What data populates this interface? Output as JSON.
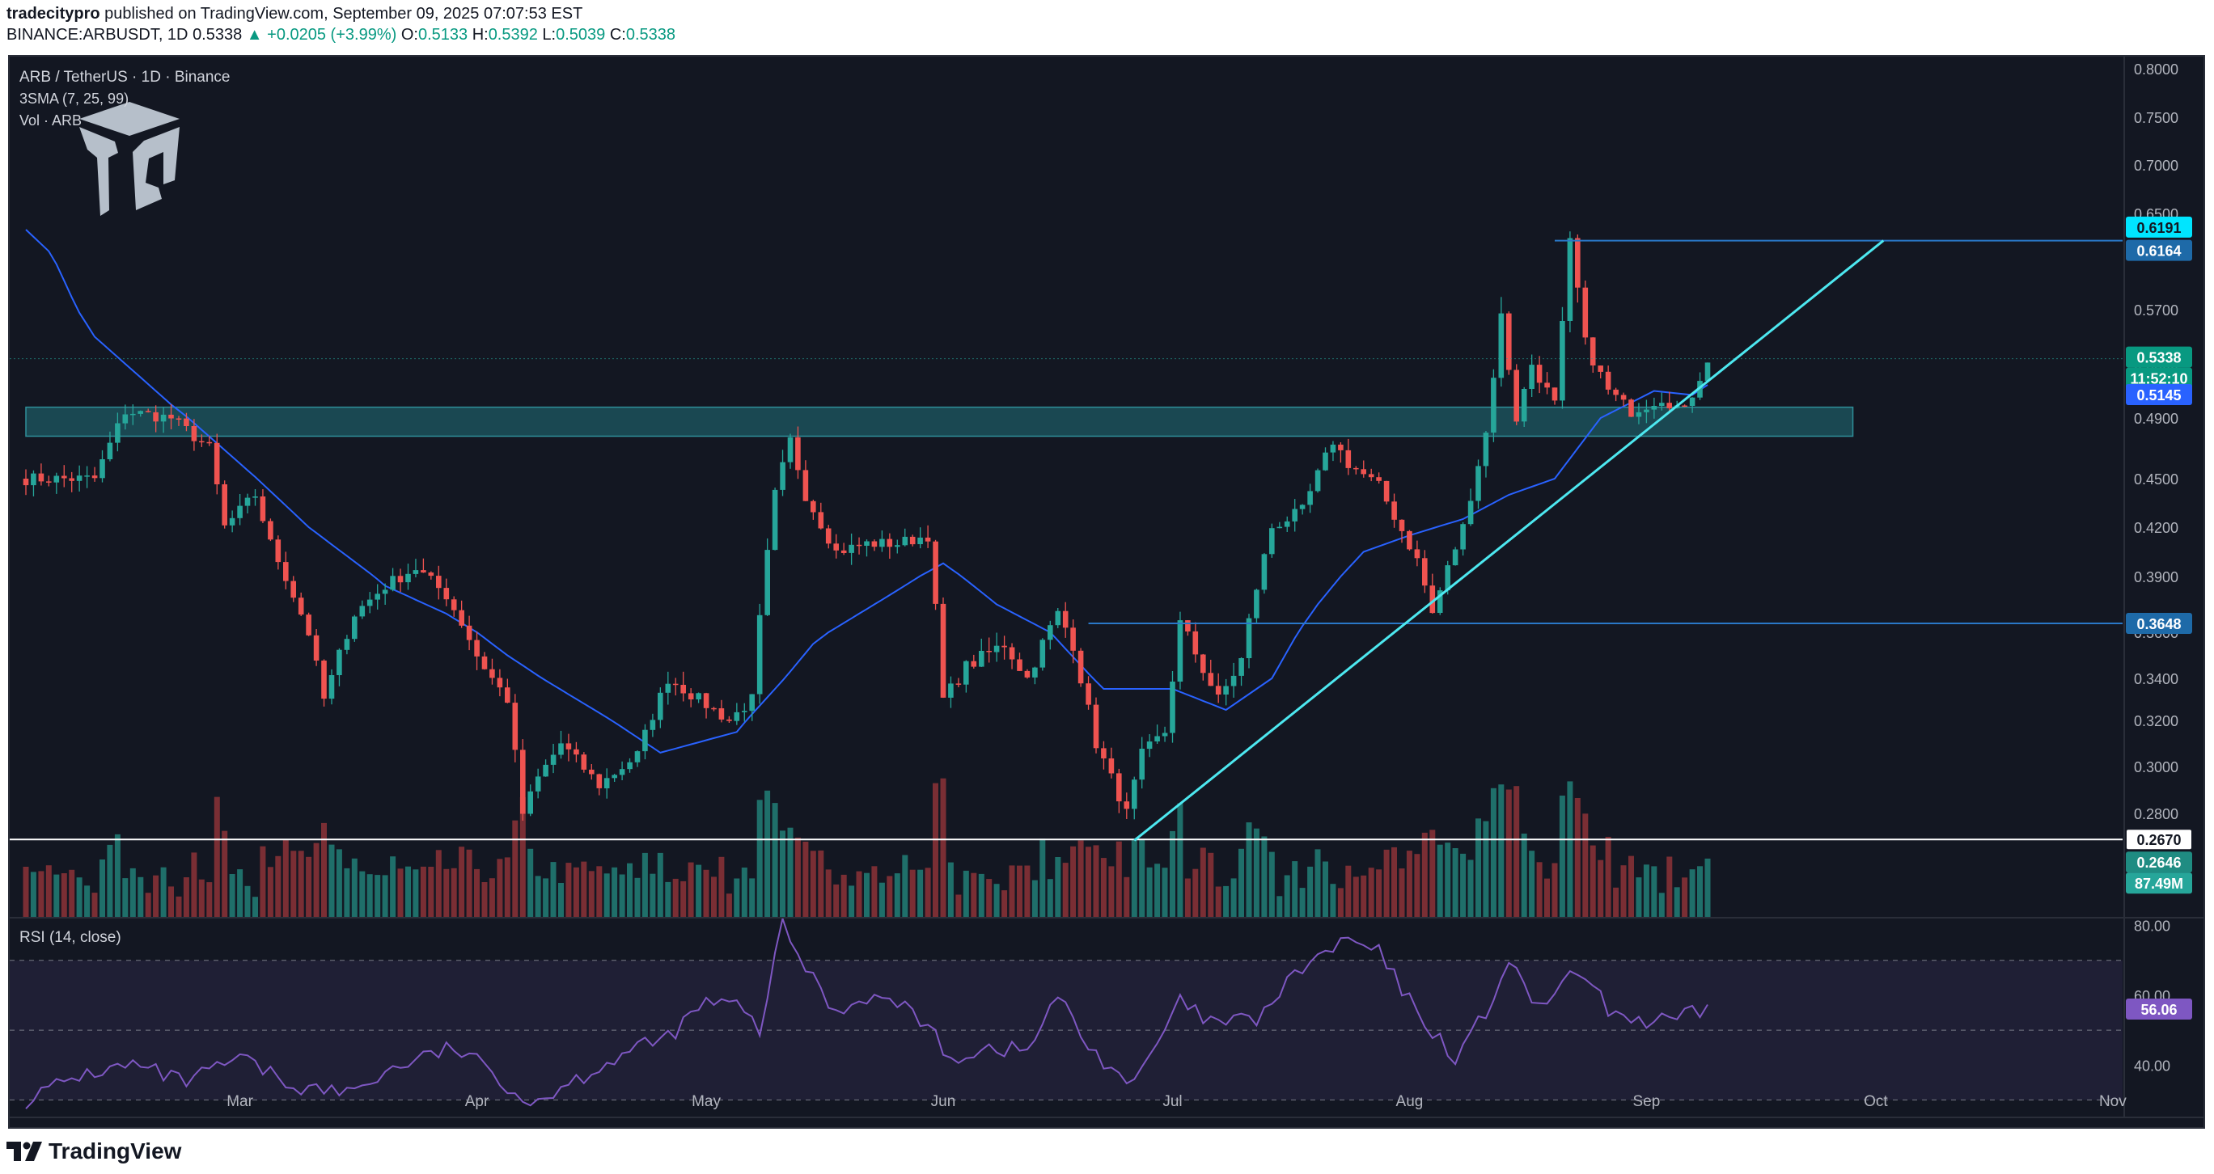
{
  "header": {
    "publisher": "tradecitypro",
    "published_text": "published on TradingView.com, September 09, 2025 07:07:53 EST",
    "symbol": "BINANCE:ARBUSDT, 1D",
    "last": "0.5338",
    "change": "▲ +0.0205 (+3.99%)",
    "o_label": "O:",
    "o": "0.5133",
    "h_label": "H:",
    "h": "0.5392",
    "l_label": "L:",
    "l": "0.5039",
    "c_label": "C:",
    "c": "0.5338"
  },
  "legend": {
    "title": "ARB / TetherUS · 1D · Binance",
    "sma": "3SMA (7, 25, 99)",
    "vol": "Vol · ARB"
  },
  "footer": {
    "brand": "TradingView"
  },
  "colors": {
    "bg": "#131722",
    "up": "#26a69a",
    "down": "#ef5350",
    "vol_up": "#1f6f6a",
    "vol_down": "#7a2e34",
    "sma": "#2962ff",
    "trend": "#4de8f0",
    "level": "#2a78c8",
    "zone": "#1d5a63",
    "rsi": "#7e57c2"
  },
  "chart_data": [
    {
      "type": "candlestick",
      "title": "ARB / TetherUS · 1D · Binance",
      "interval": "1D",
      "x_ticks": [
        "Mar",
        "Apr",
        "May",
        "Jun",
        "Jul",
        "Aug",
        "Sep",
        "Oct",
        "Nov"
      ],
      "y_ticks": [
        "0.8000",
        "0.7500",
        "0.7000",
        "0.6500",
        "0.6000",
        "0.5700",
        "0.5300",
        "0.4900",
        "0.4500",
        "0.4200",
        "0.3900",
        "0.3600",
        "0.3400",
        "0.3200",
        "0.3000",
        "0.2800"
      ],
      "ylim": [
        0.255,
        0.805
      ],
      "close_anchors": [
        [
          "2025-02-10",
          0.45
        ],
        [
          "2025-02-14",
          0.495
        ],
        [
          "2025-02-20",
          0.49
        ],
        [
          "2025-02-25",
          0.47
        ],
        [
          "2025-02-27",
          0.42
        ],
        [
          "2025-03-03",
          0.44
        ],
        [
          "2025-03-05",
          0.41
        ],
        [
          "2025-03-07",
          0.39
        ],
        [
          "2025-03-10",
          0.36
        ],
        [
          "2025-03-12",
          0.33
        ],
        [
          "2025-03-16",
          0.37
        ],
        [
          "2025-03-20",
          0.385
        ],
        [
          "2025-03-24",
          0.395
        ],
        [
          "2025-03-28",
          0.38
        ],
        [
          "2025-04-01",
          0.35
        ],
        [
          "2025-04-05",
          0.33
        ],
        [
          "2025-04-07",
          0.28
        ],
        [
          "2025-04-09",
          0.295
        ],
        [
          "2025-04-12",
          0.31
        ],
        [
          "2025-04-17",
          0.292
        ],
        [
          "2025-04-22",
          0.305
        ],
        [
          "2025-04-26",
          0.34
        ],
        [
          "2025-04-30",
          0.33
        ],
        [
          "2025-05-04",
          0.32
        ],
        [
          "2025-05-07",
          0.33
        ],
        [
          "2025-05-10",
          0.44
        ],
        [
          "2025-05-12",
          0.475
        ],
        [
          "2025-05-14",
          0.44
        ],
        [
          "2025-05-18",
          0.405
        ],
        [
          "2025-05-22",
          0.41
        ],
        [
          "2025-05-26",
          0.41
        ],
        [
          "2025-05-30",
          0.415
        ],
        [
          "2025-06-01",
          0.33
        ],
        [
          "2025-06-04",
          0.345
        ],
        [
          "2025-06-09",
          0.355
        ],
        [
          "2025-06-12",
          0.34
        ],
        [
          "2025-06-16",
          0.37
        ],
        [
          "2025-06-18",
          0.355
        ],
        [
          "2025-06-21",
          0.31
        ],
        [
          "2025-06-25",
          0.28
        ],
        [
          "2025-06-27",
          0.305
        ],
        [
          "2025-06-30",
          0.315
        ],
        [
          "2025-07-02",
          0.365
        ],
        [
          "2025-07-07",
          0.33
        ],
        [
          "2025-07-10",
          0.348
        ],
        [
          "2025-07-14",
          0.42
        ],
        [
          "2025-07-18",
          0.43
        ],
        [
          "2025-07-22",
          0.475
        ],
        [
          "2025-07-24",
          0.46
        ],
        [
          "2025-07-28",
          0.445
        ],
        [
          "2025-08-02",
          0.4
        ],
        [
          "2025-08-04",
          0.37
        ],
        [
          "2025-08-06",
          0.395
        ],
        [
          "2025-08-08",
          0.42
        ],
        [
          "2025-08-11",
          0.48
        ],
        [
          "2025-08-13",
          0.565
        ],
        [
          "2025-08-15",
          0.49
        ],
        [
          "2025-08-17",
          0.53
        ],
        [
          "2025-08-20",
          0.5
        ],
        [
          "2025-08-22",
          0.615
        ],
        [
          "2025-08-24",
          0.545
        ],
        [
          "2025-08-27",
          0.51
        ],
        [
          "2025-08-30",
          0.495
        ],
        [
          "2025-09-03",
          0.505
        ],
        [
          "2025-09-06",
          0.495
        ],
        [
          "2025-09-09",
          0.5338
        ]
      ],
      "sma_anchors": [
        [
          "2025-02-01",
          0.63
        ],
        [
          "2025-02-10",
          0.55
        ],
        [
          "2025-02-20",
          0.5
        ],
        [
          "2025-03-01",
          0.46
        ],
        [
          "2025-03-10",
          0.42
        ],
        [
          "2025-03-20",
          0.385
        ],
        [
          "2025-03-28",
          0.37
        ],
        [
          "2025-04-05",
          0.35
        ],
        [
          "2025-04-15",
          0.328
        ],
        [
          "2025-04-25",
          0.306
        ],
        [
          "2025-05-05",
          0.315
        ],
        [
          "2025-05-15",
          0.355
        ],
        [
          "2025-05-25",
          0.38
        ],
        [
          "2025-06-01",
          0.398
        ],
        [
          "2025-06-08",
          0.375
        ],
        [
          "2025-06-15",
          0.36
        ],
        [
          "2025-06-22",
          0.335
        ],
        [
          "2025-07-01",
          0.335
        ],
        [
          "2025-07-08",
          0.325
        ],
        [
          "2025-07-14",
          0.34
        ],
        [
          "2025-07-20",
          0.375
        ],
        [
          "2025-07-26",
          0.405
        ],
        [
          "2025-08-01",
          0.415
        ],
        [
          "2025-08-08",
          0.425
        ],
        [
          "2025-08-14",
          0.44
        ],
        [
          "2025-08-20",
          0.45
        ],
        [
          "2025-08-26",
          0.49
        ],
        [
          "2025-09-02",
          0.51
        ],
        [
          "2025-09-07",
          0.507
        ],
        [
          "2025-09-09",
          0.5145
        ]
      ],
      "price_labels": {
        "resistance_high": "0.6191",
        "resistance": "0.6164",
        "last": "0.5338",
        "countdown": "11:52:10",
        "sma": "0.5145",
        "support": "0.3648",
        "horizontal_line": "0.2670",
        "volume_sma": "0.2646",
        "volume": "87.49M"
      },
      "annotations": {
        "zone_low": 0.478,
        "zone_high": 0.498,
        "zone_start": "2025-02-01",
        "zone_end": "2025-09-28",
        "resistance_value": 0.6164,
        "resistance_start": "2025-08-20",
        "support_value": 0.3648,
        "support_start": "2025-06-20",
        "horizontal_value": 0.267,
        "trendline_start": [
          "2025-06-26",
          0.2665
        ],
        "trendline_end": [
          "2025-10-02",
          0.6164
        ]
      }
    },
    {
      "type": "line",
      "title": "RSI (14, close)",
      "ylim": [
        25,
        82
      ],
      "y_ticks": [
        "80.00",
        "60.00",
        "40.00"
      ],
      "bands": [
        70,
        50,
        30
      ],
      "last_value": "56.06",
      "anchors": [
        [
          "2025-02-01",
          30
        ],
        [
          "2025-02-08",
          37
        ],
        [
          "2025-02-15",
          40
        ],
        [
          "2025-02-22",
          35
        ],
        [
          "2025-03-01",
          42
        ],
        [
          "2025-03-08",
          34
        ],
        [
          "2025-03-15",
          32
        ],
        [
          "2025-03-22",
          40
        ],
        [
          "2025-03-29",
          45
        ],
        [
          "2025-04-03",
          38
        ],
        [
          "2025-04-08",
          29
        ],
        [
          "2025-04-14",
          36
        ],
        [
          "2025-04-20",
          43
        ],
        [
          "2025-04-26",
          48
        ],
        [
          "2025-05-01",
          58
        ],
        [
          "2025-05-05",
          57
        ],
        [
          "2025-05-08",
          50
        ],
        [
          "2025-05-11",
          80
        ],
        [
          "2025-05-14",
          68
        ],
        [
          "2025-05-18",
          55
        ],
        [
          "2025-05-22",
          60
        ],
        [
          "2025-05-28",
          56
        ],
        [
          "2025-06-02",
          42
        ],
        [
          "2025-06-07",
          45
        ],
        [
          "2025-06-12",
          44
        ],
        [
          "2025-06-16",
          60
        ],
        [
          "2025-06-20",
          45
        ],
        [
          "2025-06-26",
          34
        ],
        [
          "2025-07-02",
          58
        ],
        [
          "2025-07-06",
          52
        ],
        [
          "2025-07-12",
          53
        ],
        [
          "2025-07-18",
          68
        ],
        [
          "2025-07-24",
          76
        ],
        [
          "2025-07-28",
          72
        ],
        [
          "2025-08-02",
          55
        ],
        [
          "2025-08-07",
          42
        ],
        [
          "2025-08-11",
          55
        ],
        [
          "2025-08-14",
          70
        ],
        [
          "2025-08-17",
          57
        ],
        [
          "2025-08-20",
          60
        ],
        [
          "2025-08-23",
          67
        ],
        [
          "2025-08-27",
          56
        ],
        [
          "2025-09-01",
          52
        ],
        [
          "2025-09-05",
          53
        ],
        [
          "2025-09-09",
          56.06
        ]
      ]
    }
  ]
}
